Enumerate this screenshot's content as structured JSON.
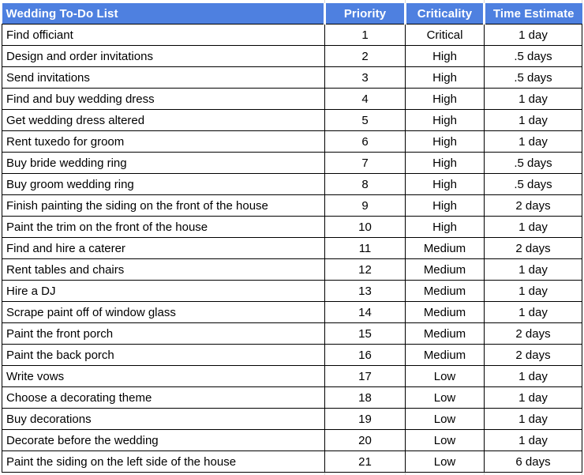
{
  "theme": {
    "header_bg": "#4E80E0",
    "header_fg": "#FFFFFF",
    "border": "#000000",
    "row_bg": "#FFFFFF",
    "text": "#000000",
    "gridline": "#D8D8D8"
  },
  "table": {
    "columns": [
      {
        "key": "task",
        "label": "Wedding To-Do List",
        "align": "left"
      },
      {
        "key": "priority",
        "label": "Priority",
        "align": "center"
      },
      {
        "key": "criticality",
        "label": "Criticality",
        "align": "center"
      },
      {
        "key": "time",
        "label": "Time Estimate",
        "align": "center"
      }
    ],
    "rows": [
      {
        "task": "Find officiant",
        "priority": 1,
        "criticality": "Critical",
        "time": "1 day"
      },
      {
        "task": "Design and order invitations",
        "priority": 2,
        "criticality": "High",
        "time": ".5 days"
      },
      {
        "task": "Send invitations",
        "priority": 3,
        "criticality": "High",
        "time": ".5 days"
      },
      {
        "task": "Find and buy wedding dress",
        "priority": 4,
        "criticality": "High",
        "time": "1 day"
      },
      {
        "task": "Get wedding dress altered",
        "priority": 5,
        "criticality": "High",
        "time": "1 day"
      },
      {
        "task": "Rent tuxedo for groom",
        "priority": 6,
        "criticality": "High",
        "time": "1 day"
      },
      {
        "task": "Buy bride wedding ring",
        "priority": 7,
        "criticality": "High",
        "time": ".5 days"
      },
      {
        "task": "Buy groom wedding ring",
        "priority": 8,
        "criticality": "High",
        "time": ".5 days"
      },
      {
        "task": "Finish painting the siding on the front of the house",
        "priority": 9,
        "criticality": "High",
        "time": "2 days"
      },
      {
        "task": "Paint the trim on the front of the house",
        "priority": 10,
        "criticality": "High",
        "time": "1 day"
      },
      {
        "task": "Find and hire a caterer",
        "priority": 11,
        "criticality": "Medium",
        "time": "2 days"
      },
      {
        "task": "Rent tables and chairs",
        "priority": 12,
        "criticality": "Medium",
        "time": "1 day"
      },
      {
        "task": "Hire a DJ",
        "priority": 13,
        "criticality": "Medium",
        "time": "1 day"
      },
      {
        "task": "Scrape paint off of window glass",
        "priority": 14,
        "criticality": "Medium",
        "time": "1 day"
      },
      {
        "task": "Paint the front porch",
        "priority": 15,
        "criticality": "Medium",
        "time": "2 days"
      },
      {
        "task": "Paint the back porch",
        "priority": 16,
        "criticality": "Medium",
        "time": "2 days"
      },
      {
        "task": "Write vows",
        "priority": 17,
        "criticality": "Low",
        "time": "1 day"
      },
      {
        "task": "Choose a decorating theme",
        "priority": 18,
        "criticality": "Low",
        "time": "1 day"
      },
      {
        "task": "Buy decorations",
        "priority": 19,
        "criticality": "Low",
        "time": "1 day"
      },
      {
        "task": "Decorate before the wedding",
        "priority": 20,
        "criticality": "Low",
        "time": "1 day"
      },
      {
        "task": "Paint the siding on the left side of the house",
        "priority": 21,
        "criticality": "Low",
        "time": "6 days"
      }
    ]
  }
}
